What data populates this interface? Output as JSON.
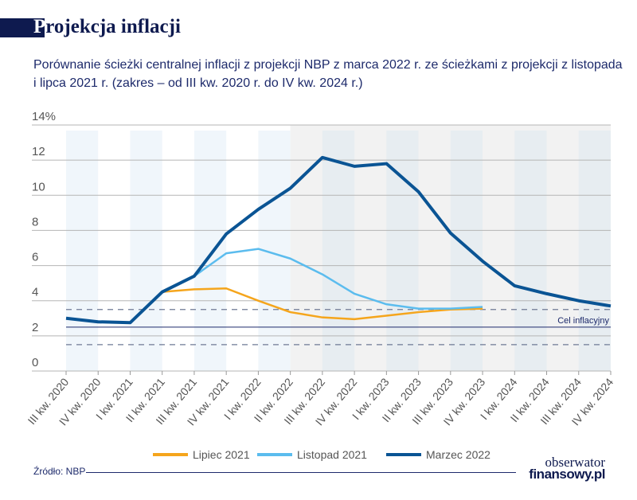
{
  "header": {
    "title_first_letter": "P",
    "title_rest": "rojekcja inflacji",
    "subtitle": "Porównanie ścieżki centralnej inflacji z projekcji NBP z marca 2022 r. ze ścieżkami z projekcji z listopada i lipca 2021 r. (zakres – od III kw. 2020 r. do IV kw. 2024 r.)"
  },
  "chart_data": {
    "type": "line",
    "title": "",
    "xlabel": "",
    "ylabel": "",
    "ylim": [
      0,
      14
    ],
    "yticks": [
      "0",
      "2",
      "4",
      "6",
      "8",
      "10",
      "12",
      "14%"
    ],
    "categories": [
      "III kw. 2020",
      "IV kw. 2020",
      "I kw. 2021",
      "II kw. 2021",
      "III kw. 2021",
      "IV kw. 2021",
      "I kw. 2022",
      "II kw. 2022",
      "III kw. 2022",
      "IV kw. 2022",
      "I kw. 2023",
      "II kw. 2023",
      "III kw. 2023",
      "IV kw. 2023",
      "I kw. 2024",
      "II kw. 2024",
      "III kw. 2024",
      "IV kw. 2024"
    ],
    "grid": true,
    "projection_shading_start": "II kw. 2022",
    "target": {
      "label": "Cel inflacyjny",
      "value": 2.5,
      "band": [
        1.5,
        3.5
      ]
    },
    "legend_position": "bottom",
    "series": [
      {
        "name": "Lipiec 2021",
        "color": "#f5a51c",
        "values": [
          null,
          null,
          null,
          4.5,
          4.65,
          4.7,
          4.0,
          3.35,
          3.05,
          2.95,
          3.15,
          3.35,
          3.5,
          3.55,
          null,
          null,
          null,
          null
        ]
      },
      {
        "name": "Listopad 2021",
        "color": "#5bbcee",
        "values": [
          null,
          null,
          null,
          null,
          5.4,
          6.7,
          6.95,
          6.4,
          5.5,
          4.4,
          3.8,
          3.55,
          3.55,
          3.65,
          null,
          null,
          null,
          null
        ]
      },
      {
        "name": "Marzec 2022",
        "color": "#0a5494",
        "values": [
          3.0,
          2.8,
          2.75,
          4.5,
          5.4,
          7.8,
          9.2,
          10.4,
          12.15,
          11.65,
          11.8,
          10.2,
          7.85,
          6.25,
          4.85,
          4.4,
          4.0,
          3.7
        ]
      }
    ]
  },
  "footer": {
    "source": "Źródło: NBP",
    "logo_line1": "obserwator",
    "logo_line2": "finansowy.pl"
  }
}
